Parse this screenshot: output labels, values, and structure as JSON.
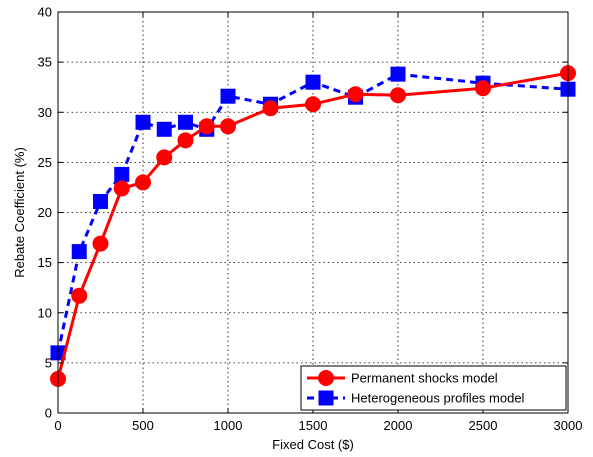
{
  "chart_data": {
    "type": "line",
    "xlabel": "Fixed Cost ($)",
    "ylabel": "Rebate Coefficient (%)",
    "xlim": [
      0,
      3000
    ],
    "ylim": [
      0,
      40
    ],
    "xticks": [
      0,
      500,
      1000,
      1500,
      2000,
      2500,
      3000
    ],
    "yticks": [
      0,
      5,
      10,
      15,
      20,
      25,
      30,
      35,
      40
    ],
    "grid": true,
    "legend_position": "bottom-right",
    "series": [
      {
        "name": "Permanent shocks model",
        "color": "#ff0000",
        "line_style": "solid",
        "marker": "circle",
        "x": [
          0,
          125,
          250,
          375,
          500,
          625,
          750,
          875,
          1000,
          1250,
          1500,
          1750,
          2000,
          2500,
          3000
        ],
        "y": [
          3.4,
          11.7,
          16.9,
          22.4,
          23.0,
          25.5,
          27.2,
          28.6,
          28.6,
          30.4,
          30.8,
          31.8,
          31.7,
          32.4,
          33.9
        ]
      },
      {
        "name": "Heterogeneous profiles model",
        "color": "#0000ff",
        "line_style": "dashed",
        "marker": "square",
        "x": [
          0,
          125,
          250,
          375,
          500,
          625,
          750,
          875,
          1000,
          1250,
          1500,
          1750,
          2000,
          2500,
          3000
        ],
        "y": [
          6.0,
          16.1,
          21.1,
          23.8,
          29.0,
          28.3,
          29.0,
          28.3,
          31.6,
          30.8,
          33.0,
          31.5,
          33.8,
          32.9,
          32.3
        ]
      }
    ]
  }
}
